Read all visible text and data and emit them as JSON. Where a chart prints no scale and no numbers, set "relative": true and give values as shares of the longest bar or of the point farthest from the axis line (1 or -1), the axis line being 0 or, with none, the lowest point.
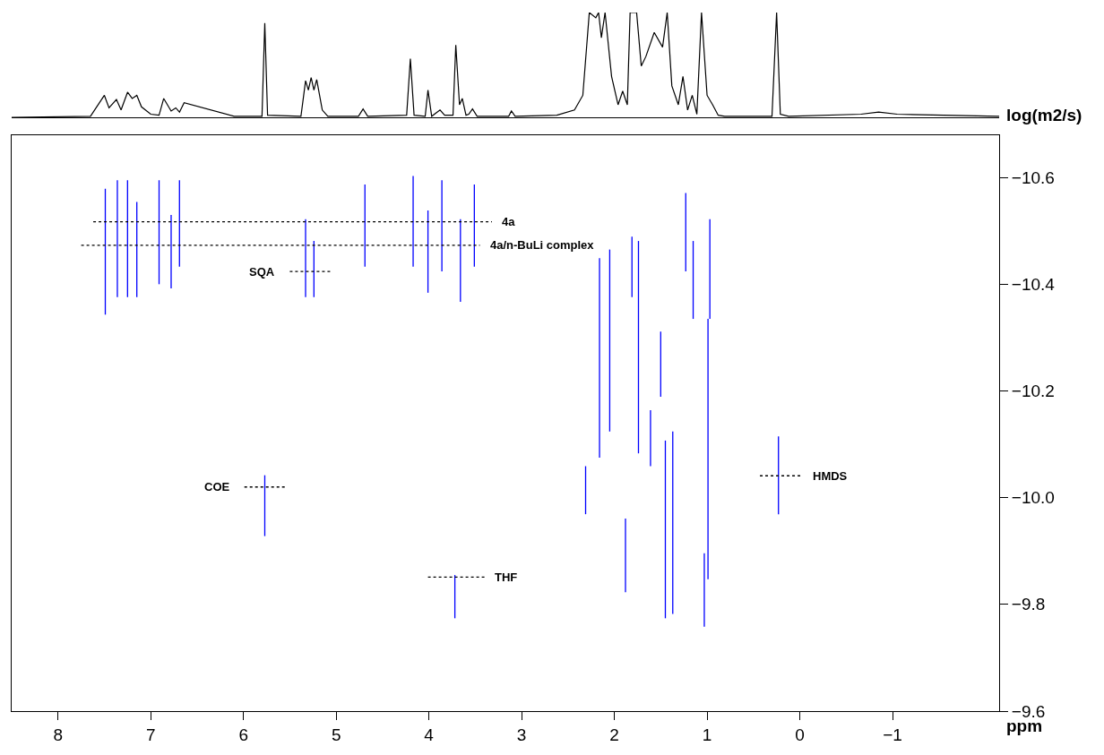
{
  "chart_data": [
    {
      "type": "line",
      "relative": true,
      "xlim": [
        8.5,
        -2.15
      ],
      "series": [
        {
          "color": "#000000",
          "x": [
            8.5,
            7.65,
            7.5,
            7.45,
            7.37,
            7.32,
            7.25,
            7.2,
            7.15,
            7.1,
            7.0,
            6.91,
            6.86,
            6.78,
            6.73,
            6.69,
            6.64,
            6.1,
            5.8,
            5.77,
            5.74,
            5.38,
            5.33,
            5.3,
            5.27,
            5.24,
            5.21,
            5.15,
            5.09,
            4.76,
            4.71,
            4.66,
            4.24,
            4.2,
            4.16,
            4.04,
            4.01,
            3.97,
            3.88,
            3.83,
            3.74,
            3.71,
            3.67,
            3.64,
            3.6,
            3.57,
            3.53,
            3.48,
            3.14,
            3.11,
            3.07,
            2.62,
            2.43,
            2.34,
            2.27,
            2.2,
            2.17,
            2.14,
            2.1,
            2.03,
            1.96,
            1.91,
            1.86,
            1.83,
            1.76,
            1.71,
            1.66,
            1.57,
            1.48,
            1.43,
            1.38,
            1.31,
            1.26,
            1.21,
            1.16,
            1.11,
            1.06,
            1.0,
            0.94,
            0.88,
            0.81,
            0.3,
            0.25,
            0.21,
            0.12,
            -0.66,
            -0.85,
            -1.05,
            -2.15
          ],
          "values": [
            0,
            0.01,
            0.21,
            0.09,
            0.17,
            0.07,
            0.24,
            0.18,
            0.21,
            0.1,
            0.03,
            0.02,
            0.18,
            0.06,
            0.09,
            0.05,
            0.14,
            0.01,
            0.01,
            0.9,
            0.02,
            0.01,
            0.35,
            0.26,
            0.38,
            0.26,
            0.36,
            0.07,
            0.01,
            0.01,
            0.08,
            0.01,
            0.02,
            0.56,
            0.02,
            0.01,
            0.26,
            0.01,
            0.07,
            0.02,
            0.02,
            0.69,
            0.12,
            0.18,
            0.02,
            0.03,
            0.08,
            0.01,
            0.01,
            0.06,
            0.01,
            0.02,
            0.07,
            0.21,
            1,
            0.95,
            1,
            0.76,
            1,
            0.39,
            0.12,
            0.25,
            0.12,
            1,
            1,
            0.49,
            0.58,
            0.81,
            0.67,
            1,
            0.3,
            0.12,
            0.39,
            0.07,
            0.21,
            0.03,
            1,
            0.21,
            0.12,
            0.02,
            0.01,
            0.01,
            1,
            0.03,
            0.01,
            0.03,
            0.05,
            0.03,
            0.01
          ]
        }
      ]
    },
    {
      "type": "line",
      "xlabel": "ppm",
      "ylabel": "log(m2/s)",
      "marker": "none",
      "xlim": [
        8.5,
        -2.15
      ],
      "xticks": [
        8,
        7,
        6,
        5,
        4,
        3,
        2,
        1,
        0,
        {
          "value": -1,
          "label": "−1"
        }
      ],
      "ylim": [
        -9.6,
        -10.68
      ],
      "yticks": [
        {
          "value": -10.6,
          "label": "−10.6"
        },
        {
          "value": -10.4,
          "label": "−10.4"
        },
        {
          "value": -10.2,
          "label": "−10.2"
        },
        {
          "value": -10.0,
          "label": "−10.0"
        },
        {
          "value": -9.8,
          "label": "−9.8"
        },
        {
          "value": -9.6,
          "label": "−9.6"
        }
      ],
      "series": [
        {
          "color": "#0000ff",
          "x": [
            7.49,
            7.49
          ],
          "values": [
            -10.579,
            -10.343
          ]
        },
        {
          "color": "#0000ff",
          "x": [
            7.36,
            7.36
          ],
          "values": [
            -10.595,
            -10.376
          ]
        },
        {
          "color": "#0000ff",
          "x": [
            7.25,
            7.25
          ],
          "values": [
            -10.595,
            -10.376
          ]
        },
        {
          "color": "#0000ff",
          "x": [
            7.15,
            7.15
          ],
          "values": [
            -10.554,
            -10.376
          ]
        },
        {
          "color": "#0000ff",
          "x": [
            6.91,
            6.91
          ],
          "values": [
            -10.595,
            -10.4
          ]
        },
        {
          "color": "#0000ff",
          "x": [
            6.78,
            6.78
          ],
          "values": [
            -10.53,
            -10.392
          ]
        },
        {
          "color": "#0000ff",
          "x": [
            6.69,
            6.69
          ],
          "values": [
            -10.595,
            -10.433
          ]
        },
        {
          "color": "#0000ff",
          "x": [
            5.33,
            5.33
          ],
          "values": [
            -10.522,
            -10.376
          ]
        },
        {
          "color": "#0000ff",
          "x": [
            5.24,
            5.24
          ],
          "values": [
            -10.481,
            -10.376
          ]
        },
        {
          "color": "#0000ff",
          "x": [
            4.69,
            4.69
          ],
          "values": [
            -10.587,
            -10.433
          ]
        },
        {
          "color": "#0000ff",
          "x": [
            4.17,
            4.17
          ],
          "values": [
            -10.603,
            -10.433
          ]
        },
        {
          "color": "#0000ff",
          "x": [
            4.01,
            4.01
          ],
          "values": [
            -10.538,
            -10.384
          ]
        },
        {
          "color": "#0000ff",
          "x": [
            3.86,
            3.86
          ],
          "values": [
            -10.595,
            -10.424
          ]
        },
        {
          "color": "#0000ff",
          "x": [
            3.66,
            3.66
          ],
          "values": [
            -10.522,
            -10.367
          ]
        },
        {
          "color": "#0000ff",
          "x": [
            3.51,
            3.51
          ],
          "values": [
            -10.587,
            -10.433
          ]
        },
        {
          "color": "#0000ff",
          "x": [
            5.77,
            5.77
          ],
          "values": [
            -10.042,
            -9.928
          ]
        },
        {
          "color": "#0000ff",
          "x": [
            3.72,
            3.72
          ],
          "values": [
            -9.855,
            -9.774
          ]
        },
        {
          "color": "#0000ff",
          "x": [
            2.31,
            2.31
          ],
          "values": [
            -10.059,
            -9.969
          ]
        },
        {
          "color": "#0000ff",
          "x": [
            2.16,
            2.16
          ],
          "values": [
            -10.449,
            -10.075
          ]
        },
        {
          "color": "#0000ff",
          "x": [
            2.05,
            2.05
          ],
          "values": [
            -10.465,
            -10.124
          ]
        },
        {
          "color": "#0000ff",
          "x": [
            1.88,
            1.88
          ],
          "values": [
            -9.961,
            -9.823
          ]
        },
        {
          "color": "#0000ff",
          "x": [
            1.81,
            1.81
          ],
          "values": [
            -10.489,
            -10.376
          ]
        },
        {
          "color": "#0000ff",
          "x": [
            1.74,
            1.74
          ],
          "values": [
            -10.481,
            -10.083
          ]
        },
        {
          "color": "#0000ff",
          "x": [
            1.61,
            1.61
          ],
          "values": [
            -10.164,
            -10.059
          ]
        },
        {
          "color": "#0000ff",
          "x": [
            1.5,
            1.5
          ],
          "values": [
            -10.311,
            -10.189
          ]
        },
        {
          "color": "#0000ff",
          "x": [
            1.45,
            1.45
          ],
          "values": [
            -10.107,
            -9.774
          ]
        },
        {
          "color": "#0000ff",
          "x": [
            1.37,
            1.37
          ],
          "values": [
            -10.124,
            -9.782
          ]
        },
        {
          "color": "#0000ff",
          "x": [
            1.23,
            1.23
          ],
          "values": [
            -10.571,
            -10.424
          ]
        },
        {
          "color": "#0000ff",
          "x": [
            1.15,
            1.15
          ],
          "values": [
            -10.481,
            -10.335
          ]
        },
        {
          "color": "#0000ff",
          "x": [
            1.03,
            1.03
          ],
          "values": [
            -9.896,
            -9.758
          ]
        },
        {
          "color": "#0000ff",
          "x": [
            0.99,
            0.99
          ],
          "values": [
            -10.335,
            -9.847
          ]
        },
        {
          "color": "#0000ff",
          "x": [
            0.97,
            0.97
          ],
          "values": [
            -10.522,
            -10.335
          ]
        },
        {
          "color": "#0000ff",
          "x": [
            0.23,
            0.23
          ],
          "values": [
            -10.115,
            -9.969
          ]
        },
        {
          "color": "#000000",
          "line_style": "dotted",
          "x": [
            7.62,
            3.32
          ],
          "values": [
            -10.517,
            -10.517
          ]
        },
        {
          "color": "#000000",
          "line_style": "dotted",
          "x": [
            7.75,
            3.45
          ],
          "values": [
            -10.473,
            -10.473
          ]
        },
        {
          "color": "#000000",
          "line_style": "dotted",
          "x": [
            5.5,
            5.04
          ],
          "values": [
            -10.424,
            -10.424
          ]
        },
        {
          "color": "#000000",
          "line_style": "dotted",
          "x": [
            5.99,
            5.55
          ],
          "values": [
            -10.02,
            -10.02
          ]
        },
        {
          "color": "#000000",
          "line_style": "dotted",
          "x": [
            4.01,
            3.4
          ],
          "values": [
            -9.851,
            -9.851
          ]
        },
        {
          "color": "#000000",
          "line_style": "dotted",
          "x": [
            0.43,
            -0.03
          ],
          "values": [
            -10.041,
            -10.041
          ]
        }
      ],
      "annotations": [
        {
          "text": "4a",
          "x": 3.32,
          "y": -10.517
        },
        {
          "text": "4a/n-BuLi complex",
          "x": 3.45,
          "y": -10.473
        },
        {
          "text": "SQA",
          "x": 5.5,
          "y": -10.424
        },
        {
          "text": "COE",
          "x": 5.99,
          "y": -10.02
        },
        {
          "text": "THF",
          "x": 3.4,
          "y": -9.851
        },
        {
          "text": "HMDS",
          "x": -0.03,
          "y": -10.041
        }
      ]
    }
  ]
}
